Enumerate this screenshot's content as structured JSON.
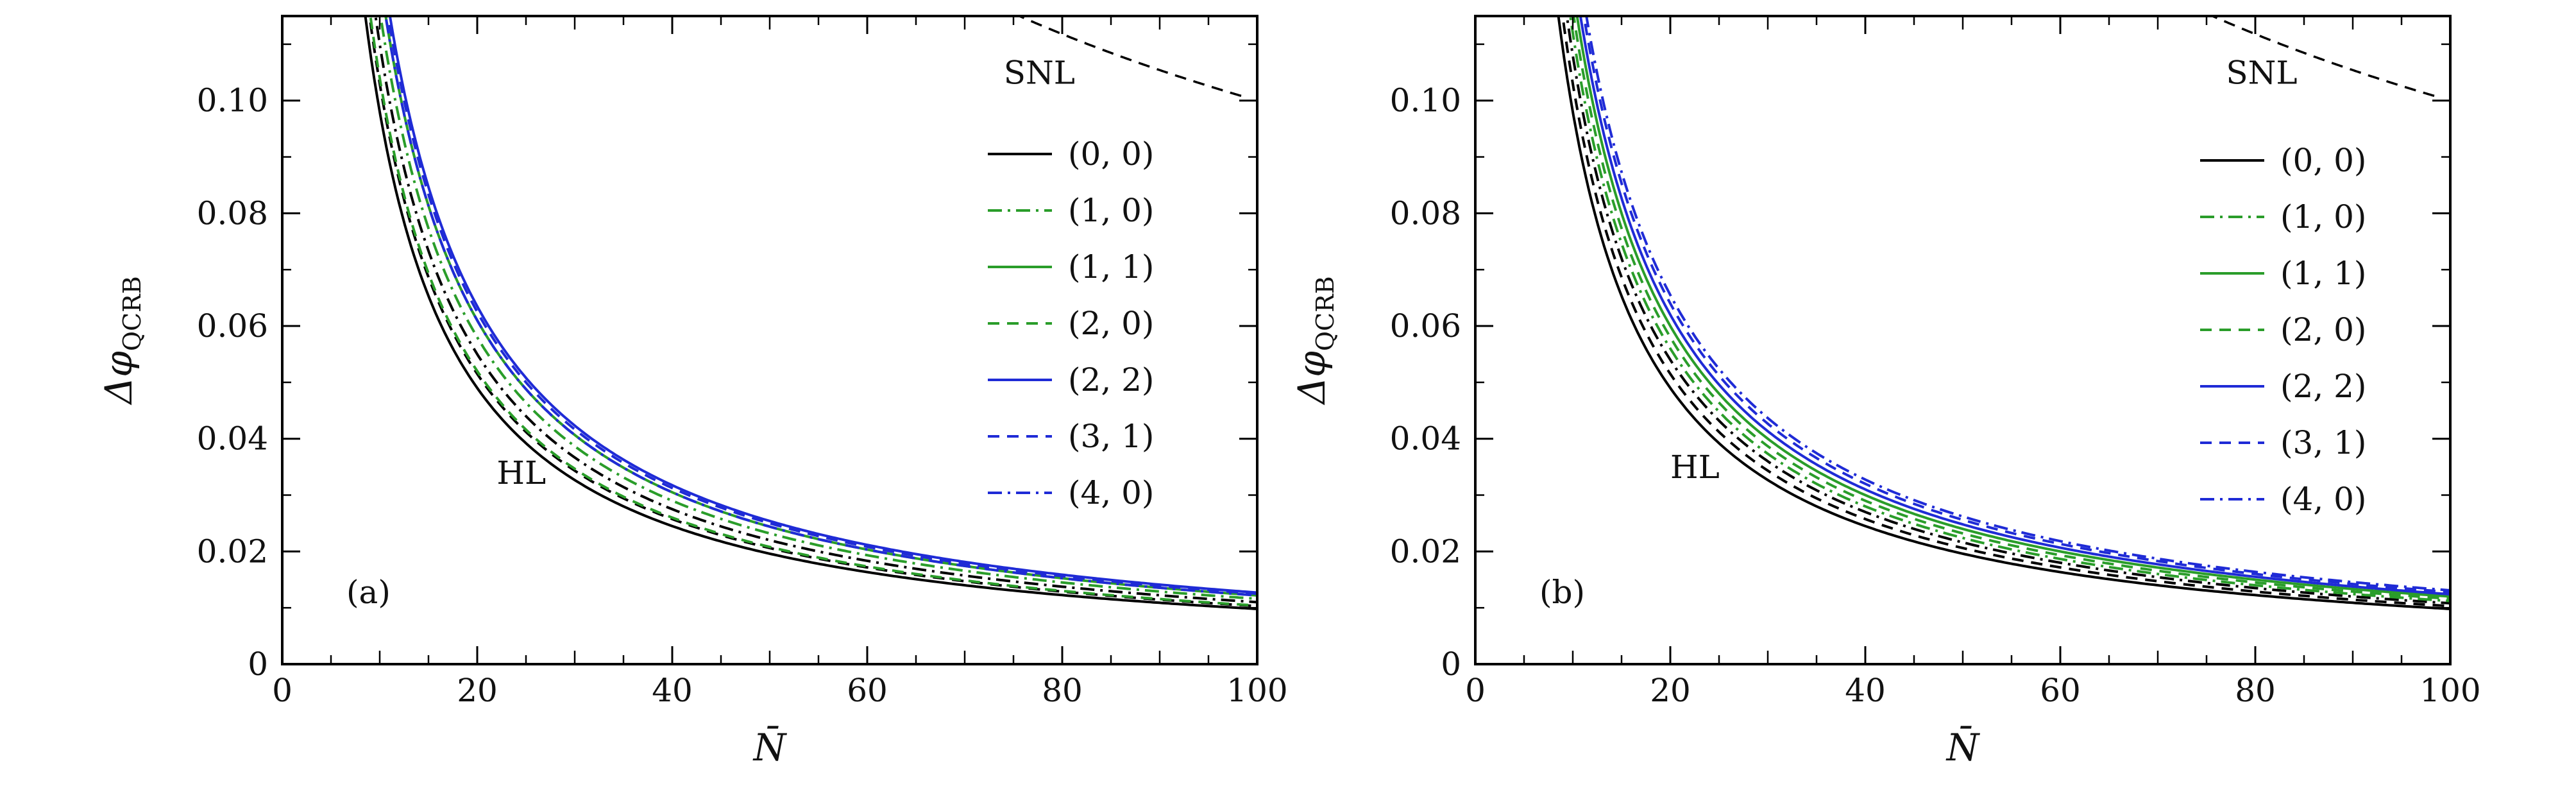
{
  "chart_data": [
    {
      "type": "line",
      "panel_label": "(a)",
      "xlabel": "N̄",
      "ylabel": "Δφ",
      "ylabel_sub": "QCRB",
      "xlim": [
        0,
        100
      ],
      "ylim": [
        0,
        0.115
      ],
      "x_ticks": [
        0,
        20,
        40,
        60,
        80,
        100
      ],
      "x_tick_labels": [
        "0",
        "20",
        "40",
        "60",
        "80",
        "100"
      ],
      "y_ticks": [
        0,
        0.02,
        0.04,
        0.06,
        0.08,
        0.1
      ],
      "y_tick_labels": [
        "0",
        "0.02",
        "0.04",
        "0.06",
        "0.08",
        "0.10"
      ],
      "annotations": [
        {
          "text": "SNL",
          "x": 74,
          "y": 0.103
        },
        {
          "text": "HL",
          "x": 22,
          "y": 0.032
        }
      ],
      "legend_position": "right",
      "snl": {
        "name": "SNL",
        "color": "#000000",
        "dash": "dashed",
        "formula": "1/sqrt(N)",
        "x_range": [
          75,
          99
        ]
      },
      "series": [
        {
          "name": "(0,0)",
          "label": "(0, 0)",
          "color": "#000000",
          "dash": "solid",
          "coef": 0.98
        },
        {
          "name": "(1,0)",
          "label": "(1, 0)",
          "color": "#2a9d2a",
          "dash": "dashdot",
          "coef": 1.16
        },
        {
          "name": "(1,1)",
          "label": "(1, 1)",
          "color": "#2a9d2a",
          "dash": "solid",
          "coef": 1.22
        },
        {
          "name": "(2,0)",
          "label": "(2, 0)",
          "color": "#2a9d2a",
          "dash": "dashed",
          "coef": 1.04
        },
        {
          "name": "(2,2)",
          "label": "(2, 2)",
          "color": "#1f2bd6",
          "dash": "solid",
          "coef": 1.27
        },
        {
          "name": "(3,1)",
          "label": "(3, 1)",
          "color": "#1f2bd6",
          "dash": "dashed",
          "coef": 1.25
        },
        {
          "name": "(4,0)",
          "label": "(4, 0)",
          "color": "#1f2bd6",
          "dash": "dashdot",
          "coef": 1.22
        }
      ],
      "extra_curves": [
        {
          "name": "HL-dashed",
          "color": "#000000",
          "dash": "dashed",
          "coef": 1.03
        },
        {
          "name": "HL-dashdot",
          "color": "#000000",
          "dash": "dashdot",
          "coef": 1.1
        }
      ]
    },
    {
      "type": "line",
      "panel_label": "(b)",
      "xlabel": "N̄",
      "ylabel": "Δφ",
      "ylabel_sub": "QCRB",
      "xlim": [
        0,
        100
      ],
      "ylim": [
        0,
        0.115
      ],
      "x_ticks": [
        0,
        20,
        40,
        60,
        80,
        100
      ],
      "x_tick_labels": [
        "0",
        "20",
        "40",
        "60",
        "80",
        "100"
      ],
      "y_ticks": [
        0,
        0.02,
        0.04,
        0.06,
        0.08,
        0.1
      ],
      "y_tick_labels": [
        "0",
        "0.02",
        "0.04",
        "0.06",
        "0.08",
        "0.10"
      ],
      "annotations": [
        {
          "text": "SNL",
          "x": 77,
          "y": 0.103
        },
        {
          "text": "HL",
          "x": 20,
          "y": 0.033
        }
      ],
      "legend_position": "right",
      "snl": {
        "name": "SNL",
        "color": "#000000",
        "dash": "dashed",
        "formula": "1/sqrt(N)",
        "x_range": [
          75,
          99
        ]
      },
      "series": [
        {
          "name": "(0,0)",
          "label": "(0, 0)",
          "color": "#000000",
          "dash": "solid",
          "coef": 0.98
        },
        {
          "name": "(1,0)",
          "label": "(1, 0)",
          "color": "#2a9d2a",
          "dash": "dashdot",
          "coef": 1.12
        },
        {
          "name": "(1,1)",
          "label": "(1, 1)",
          "color": "#2a9d2a",
          "dash": "solid",
          "coef": 1.2
        },
        {
          "name": "(2,0)",
          "label": "(2, 0)",
          "color": "#2a9d2a",
          "dash": "dashed",
          "coef": 1.16
        },
        {
          "name": "(2,2)",
          "label": "(2, 2)",
          "color": "#1f2bd6",
          "dash": "solid",
          "coef": 1.24
        },
        {
          "name": "(3,1)",
          "label": "(3, 1)",
          "color": "#1f2bd6",
          "dash": "dashed",
          "coef": 1.28
        },
        {
          "name": "(4,0)",
          "label": "(4, 0)",
          "color": "#1f2bd6",
          "dash": "dashdot",
          "coef": 1.31
        }
      ],
      "extra_curves": [
        {
          "name": "HL-dashed",
          "color": "#000000",
          "dash": "dashed",
          "coef": 1.03
        },
        {
          "name": "HL-dashdot",
          "color": "#000000",
          "dash": "dashdot",
          "coef": 1.08
        }
      ]
    }
  ]
}
